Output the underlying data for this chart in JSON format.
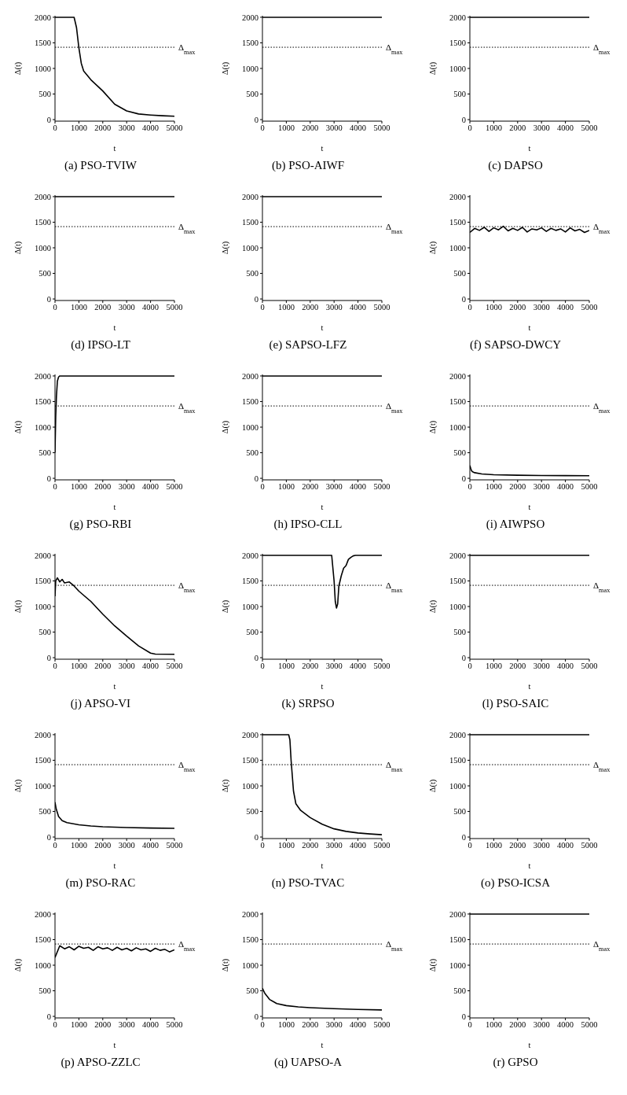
{
  "chart_data": [
    {
      "type": "line",
      "title": "(a) PSO-TVIW",
      "xlabel": "t",
      "ylabel": "Δ(t)",
      "xlim": [
        0,
        5000
      ],
      "ylim": [
        -30,
        2030
      ],
      "xticks": [
        0,
        1000,
        2000,
        3000,
        4000,
        5000
      ],
      "yticks": [
        0,
        500,
        1000,
        1500,
        2000
      ],
      "ref_lines": [
        {
          "axis": "y",
          "value": 1414,
          "label": "Δ$_{max}$",
          "line_style": "dotted"
        }
      ],
      "color": "#000000",
      "x": [
        0,
        800,
        900,
        1000,
        1100,
        1200,
        1500,
        2000,
        2500,
        3000,
        3500,
        4000,
        4500,
        5000
      ],
      "values": [
        2000,
        2000,
        1800,
        1400,
        1100,
        950,
        780,
        560,
        300,
        170,
        110,
        90,
        75,
        65
      ]
    },
    {
      "type": "line",
      "title": "(b) PSO-AIWF",
      "xlabel": "t",
      "ylabel": "Δ(t)",
      "xlim": [
        0,
        5000
      ],
      "ylim": [
        -30,
        2030
      ],
      "xticks": [
        0,
        1000,
        2000,
        3000,
        4000,
        5000
      ],
      "yticks": [
        0,
        500,
        1000,
        1500,
        2000
      ],
      "ref_lines": [
        {
          "axis": "y",
          "value": 1414,
          "label": "Δ$_{max}$",
          "line_style": "dotted"
        }
      ],
      "color": "#000000",
      "x": [
        0,
        5000
      ],
      "values": [
        2000,
        2000
      ]
    },
    {
      "type": "line",
      "title": "(c) DAPSO",
      "xlabel": "t",
      "ylabel": "Δ(t)",
      "xlim": [
        0,
        5000
      ],
      "ylim": [
        -30,
        2030
      ],
      "xticks": [
        0,
        1000,
        2000,
        3000,
        4000,
        5000
      ],
      "yticks": [
        0,
        500,
        1000,
        1500,
        2000
      ],
      "ref_lines": [
        {
          "axis": "y",
          "value": 1414,
          "label": "Δ$_{max}$",
          "line_style": "dotted"
        }
      ],
      "color": "#000000",
      "x": [
        0,
        5000
      ],
      "values": [
        2000,
        2000
      ]
    },
    {
      "type": "line",
      "title": "(d) IPSO-LT",
      "xlabel": "t",
      "ylabel": "Δ(t)",
      "xlim": [
        0,
        5000
      ],
      "ylim": [
        -30,
        2030
      ],
      "xticks": [
        0,
        1000,
        2000,
        3000,
        4000,
        5000
      ],
      "yticks": [
        0,
        500,
        1000,
        1500,
        2000
      ],
      "ref_lines": [
        {
          "axis": "y",
          "value": 1414,
          "label": "Δ$_{max}$",
          "line_style": "dotted"
        }
      ],
      "color": "#000000",
      "x": [
        0,
        5000
      ],
      "values": [
        2000,
        2000
      ]
    },
    {
      "type": "line",
      "title": "(e) SAPSO-LFZ",
      "xlabel": "t",
      "ylabel": "Δ(t)",
      "xlim": [
        0,
        5000
      ],
      "ylim": [
        -30,
        2030
      ],
      "xticks": [
        0,
        1000,
        2000,
        3000,
        4000,
        5000
      ],
      "yticks": [
        0,
        500,
        1000,
        1500,
        2000
      ],
      "ref_lines": [
        {
          "axis": "y",
          "value": 1414,
          "label": "Δ$_{max}$",
          "line_style": "dotted"
        }
      ],
      "color": "#000000",
      "x": [
        0,
        5000
      ],
      "values": [
        2000,
        2000
      ]
    },
    {
      "type": "line",
      "title": "(f) SAPSO-DWCY",
      "xlabel": "t",
      "ylabel": "Δ(t)",
      "xlim": [
        0,
        5000
      ],
      "ylim": [
        -30,
        2030
      ],
      "xticks": [
        0,
        1000,
        2000,
        3000,
        4000,
        5000
      ],
      "yticks": [
        0,
        500,
        1000,
        1500,
        2000
      ],
      "ref_lines": [
        {
          "axis": "y",
          "value": 1414,
          "label": "Δ$_{max}$",
          "line_style": "dotted"
        }
      ],
      "color": "#000000",
      "x": [
        0,
        200,
        400,
        600,
        800,
        1000,
        1200,
        1400,
        1600,
        1800,
        2000,
        2200,
        2400,
        2600,
        2800,
        3000,
        3200,
        3400,
        3600,
        3800,
        4000,
        4200,
        4400,
        4600,
        4800,
        5000
      ],
      "values": [
        1300,
        1380,
        1340,
        1400,
        1320,
        1390,
        1350,
        1420,
        1330,
        1380,
        1340,
        1400,
        1310,
        1370,
        1350,
        1390,
        1320,
        1380,
        1340,
        1370,
        1310,
        1390,
        1330,
        1360,
        1300,
        1340
      ]
    },
    {
      "type": "line",
      "title": "(g) PSO-RBI",
      "xlabel": "t",
      "ylabel": "Δ(t)",
      "xlim": [
        0,
        5000
      ],
      "ylim": [
        -30,
        2030
      ],
      "xticks": [
        0,
        1000,
        2000,
        3000,
        4000,
        5000
      ],
      "yticks": [
        0,
        500,
        1000,
        1500,
        2000
      ],
      "ref_lines": [
        {
          "axis": "y",
          "value": 1414,
          "label": "Δ$_{max}$",
          "line_style": "dotted"
        }
      ],
      "color": "#000000",
      "x": [
        0,
        30,
        60,
        100,
        150,
        200,
        5000
      ],
      "values": [
        500,
        1200,
        1600,
        1900,
        1980,
        2000,
        2000
      ]
    },
    {
      "type": "line",
      "title": "(h) IPSO-CLL",
      "xlabel": "t",
      "ylabel": "Δ(t)",
      "xlim": [
        0,
        5000
      ],
      "ylim": [
        -30,
        2030
      ],
      "xticks": [
        0,
        1000,
        2000,
        3000,
        4000,
        5000
      ],
      "yticks": [
        0,
        500,
        1000,
        1500,
        2000
      ],
      "ref_lines": [
        {
          "axis": "y",
          "value": 1414,
          "label": "Δ$_{max}$",
          "line_style": "dotted"
        }
      ],
      "color": "#000000",
      "x": [
        0,
        5000
      ],
      "values": [
        2000,
        2000
      ]
    },
    {
      "type": "line",
      "title": "(i) AIWPSO",
      "xlabel": "t",
      "ylabel": "Δ(t)",
      "xlim": [
        0,
        5000
      ],
      "ylim": [
        -30,
        2030
      ],
      "xticks": [
        0,
        1000,
        2000,
        3000,
        4000,
        5000
      ],
      "yticks": [
        0,
        500,
        1000,
        1500,
        2000
      ],
      "ref_lines": [
        {
          "axis": "y",
          "value": 1414,
          "label": "Δ$_{max}$",
          "line_style": "dotted"
        }
      ],
      "color": "#000000",
      "x": [
        0,
        50,
        100,
        200,
        500,
        1000,
        2000,
        3000,
        4000,
        5000
      ],
      "values": [
        250,
        170,
        130,
        110,
        85,
        70,
        60,
        55,
        52,
        50
      ]
    },
    {
      "type": "line",
      "title": "(j) APSO-VI",
      "xlabel": "t",
      "ylabel": "Δ(t)",
      "xlim": [
        0,
        5000
      ],
      "ylim": [
        -30,
        2030
      ],
      "xticks": [
        0,
        1000,
        2000,
        3000,
        4000,
        5000
      ],
      "yticks": [
        0,
        500,
        1000,
        1500,
        2000
      ],
      "ref_lines": [
        {
          "axis": "y",
          "value": 1414,
          "label": "Δ$_{max}$",
          "line_style": "dotted"
        }
      ],
      "color": "#000000",
      "x": [
        0,
        30,
        100,
        200,
        300,
        400,
        600,
        800,
        1000,
        1500,
        2000,
        2500,
        3000,
        3500,
        4000,
        4200,
        5000
      ],
      "values": [
        1200,
        1500,
        1560,
        1480,
        1530,
        1460,
        1480,
        1400,
        1300,
        1100,
        850,
        620,
        420,
        230,
        90,
        70,
        65
      ]
    },
    {
      "type": "line",
      "title": "(k) SRPSO",
      "xlabel": "t",
      "ylabel": "Δ(t)",
      "xlim": [
        0,
        5000
      ],
      "ylim": [
        -30,
        2030
      ],
      "xticks": [
        0,
        1000,
        2000,
        3000,
        4000,
        5000
      ],
      "yticks": [
        0,
        500,
        1000,
        1500,
        2000
      ],
      "ref_lines": [
        {
          "axis": "y",
          "value": 1414,
          "label": "Δ$_{max}$",
          "line_style": "dotted"
        }
      ],
      "color": "#000000",
      "x": [
        0,
        2900,
        3000,
        3050,
        3100,
        3150,
        3200,
        3300,
        3400,
        3500,
        3600,
        3700,
        3800,
        3900,
        5000
      ],
      "values": [
        2000,
        2000,
        1500,
        1100,
        970,
        1050,
        1400,
        1600,
        1750,
        1800,
        1920,
        1960,
        1990,
        2000,
        2000
      ]
    },
    {
      "type": "line",
      "title": "(l) PSO-SAIC",
      "xlabel": "t",
      "ylabel": "Δ(t)",
      "xlim": [
        0,
        5000
      ],
      "ylim": [
        -30,
        2030
      ],
      "xticks": [
        0,
        1000,
        2000,
        3000,
        4000,
        5000
      ],
      "yticks": [
        0,
        500,
        1000,
        1500,
        2000
      ],
      "ref_lines": [
        {
          "axis": "y",
          "value": 1414,
          "label": "Δ$_{max}$",
          "line_style": "dotted"
        }
      ],
      "color": "#000000",
      "x": [
        0,
        5000
      ],
      "values": [
        2000,
        2000
      ]
    },
    {
      "type": "line",
      "title": "(m) PSO-RAC",
      "xlabel": "t",
      "ylabel": "Δ(t)",
      "xlim": [
        0,
        5000
      ],
      "ylim": [
        -30,
        2030
      ],
      "xticks": [
        0,
        1000,
        2000,
        3000,
        4000,
        5000
      ],
      "yticks": [
        0,
        500,
        1000,
        1500,
        2000
      ],
      "ref_lines": [
        {
          "axis": "y",
          "value": 1414,
          "label": "Δ$_{max}$",
          "line_style": "dotted"
        }
      ],
      "color": "#000000",
      "x": [
        0,
        50,
        150,
        300,
        500,
        1000,
        1500,
        2000,
        3000,
        4000,
        5000
      ],
      "values": [
        680,
        550,
        400,
        320,
        280,
        240,
        215,
        200,
        185,
        175,
        170
      ]
    },
    {
      "type": "line",
      "title": "(n) PSO-TVAC",
      "xlabel": "t",
      "ylabel": "Δ(t)",
      "xlim": [
        0,
        5000
      ],
      "ylim": [
        -30,
        2030
      ],
      "xticks": [
        0,
        1000,
        2000,
        3000,
        4000,
        5000
      ],
      "yticks": [
        0,
        500,
        1000,
        1500,
        2000
      ],
      "ref_lines": [
        {
          "axis": "y",
          "value": 1414,
          "label": "Δ$_{max}$",
          "line_style": "dotted"
        }
      ],
      "color": "#000000",
      "x": [
        0,
        1100,
        1150,
        1200,
        1300,
        1400,
        1600,
        2000,
        2500,
        3000,
        3500,
        4000,
        4500,
        5000
      ],
      "values": [
        2000,
        2000,
        1900,
        1500,
        900,
        650,
        520,
        380,
        250,
        160,
        110,
        80,
        60,
        45
      ]
    },
    {
      "type": "line",
      "title": "(o) PSO-ICSA",
      "xlabel": "t",
      "ylabel": "Δ(t)",
      "xlim": [
        0,
        5000
      ],
      "ylim": [
        -30,
        2030
      ],
      "xticks": [
        0,
        1000,
        2000,
        3000,
        4000,
        5000
      ],
      "yticks": [
        0,
        500,
        1000,
        1500,
        2000
      ],
      "ref_lines": [
        {
          "axis": "y",
          "value": 1414,
          "label": "Δ$_{max}$",
          "line_style": "dotted"
        }
      ],
      "color": "#000000",
      "x": [
        0,
        5000
      ],
      "values": [
        2000,
        2000
      ]
    },
    {
      "type": "line",
      "title": "(p) APSO-ZZLC",
      "xlabel": "t",
      "ylabel": "Δ(t)",
      "xlim": [
        0,
        5000
      ],
      "ylim": [
        -30,
        2030
      ],
      "xticks": [
        0,
        1000,
        2000,
        3000,
        4000,
        5000
      ],
      "yticks": [
        0,
        500,
        1000,
        1500,
        2000
      ],
      "ref_lines": [
        {
          "axis": "y",
          "value": 1414,
          "label": "Δ$_{max}$",
          "line_style": "dotted"
        }
      ],
      "color": "#000000",
      "x": [
        0,
        200,
        400,
        600,
        800,
        1000,
        1200,
        1400,
        1600,
        1800,
        2000,
        2200,
        2400,
        2600,
        2800,
        3000,
        3200,
        3400,
        3600,
        3800,
        4000,
        4200,
        4400,
        4600,
        4800,
        5000
      ],
      "values": [
        1150,
        1380,
        1320,
        1360,
        1300,
        1370,
        1330,
        1350,
        1290,
        1360,
        1320,
        1340,
        1290,
        1350,
        1300,
        1330,
        1280,
        1340,
        1300,
        1320,
        1270,
        1330,
        1290,
        1310,
        1260,
        1300
      ]
    },
    {
      "type": "line",
      "title": "(q) UAPSO-A",
      "xlabel": "t",
      "ylabel": "Δ(t)",
      "xlim": [
        0,
        5000
      ],
      "ylim": [
        -30,
        2030
      ],
      "xticks": [
        0,
        1000,
        2000,
        3000,
        4000,
        5000
      ],
      "yticks": [
        0,
        500,
        1000,
        1500,
        2000
      ],
      "ref_lines": [
        {
          "axis": "y",
          "value": 1414,
          "label": "Δ$_{max}$",
          "line_style": "dotted"
        }
      ],
      "color": "#000000",
      "x": [
        0,
        100,
        300,
        600,
        1000,
        1500,
        2000,
        3000,
        4000,
        5000
      ],
      "values": [
        550,
        450,
        330,
        250,
        210,
        185,
        170,
        150,
        135,
        125
      ]
    },
    {
      "type": "line",
      "title": "(r) GPSO",
      "xlabel": "t",
      "ylabel": "Δ(t)",
      "xlim": [
        0,
        5000
      ],
      "ylim": [
        -30,
        2030
      ],
      "xticks": [
        0,
        1000,
        2000,
        3000,
        4000,
        5000
      ],
      "yticks": [
        0,
        500,
        1000,
        1500,
        2000
      ],
      "ref_lines": [
        {
          "axis": "y",
          "value": 1414,
          "label": "Δ$_{max}$",
          "line_style": "dotted"
        }
      ],
      "color": "#000000",
      "x": [
        0,
        5000
      ],
      "values": [
        2000,
        2000
      ]
    }
  ]
}
